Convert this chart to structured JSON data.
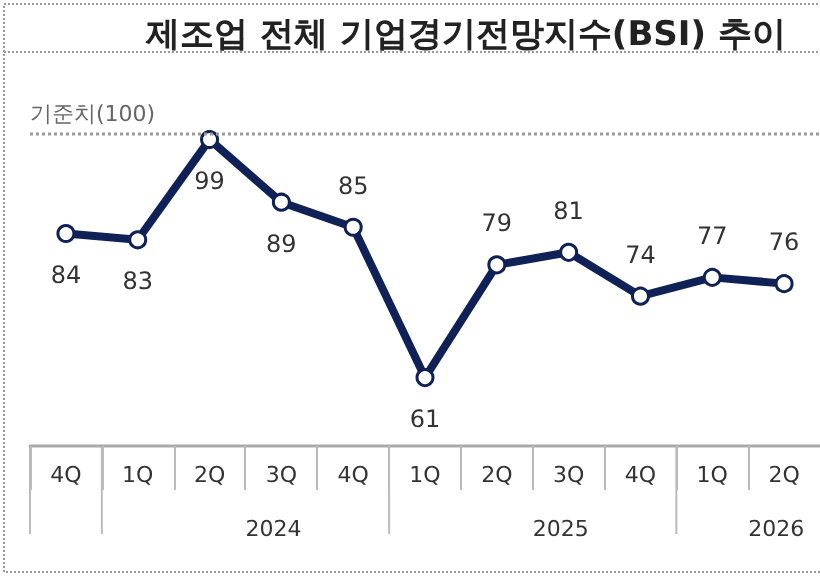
{
  "chart_data": {
    "type": "line",
    "title": "제조업 전체 기업경기전망지수(BSI) 추이",
    "categories": [
      "4Q",
      "1Q",
      "2Q",
      "3Q",
      "4Q",
      "1Q",
      "2Q",
      "3Q",
      "4Q",
      "1Q",
      "2Q"
    ],
    "series": [
      {
        "color": "#0f2156",
        "values": [
          84,
          83,
          99,
          89,
          85,
          61,
          79,
          81,
          74,
          77,
          76
        ]
      }
    ],
    "tick_labels": "x",
    "grid": false,
    "marker": "circle",
    "line_style": "solid",
    "data_labels": true,
    "ref_lines": [
      {
        "axis": "y",
        "value": 100,
        "label": "기준치(100)",
        "color": "#9a9a9a",
        "line_style": "dotted"
      }
    ],
    "annotations": [
      "2024",
      "2025",
      "2026"
    ]
  }
}
